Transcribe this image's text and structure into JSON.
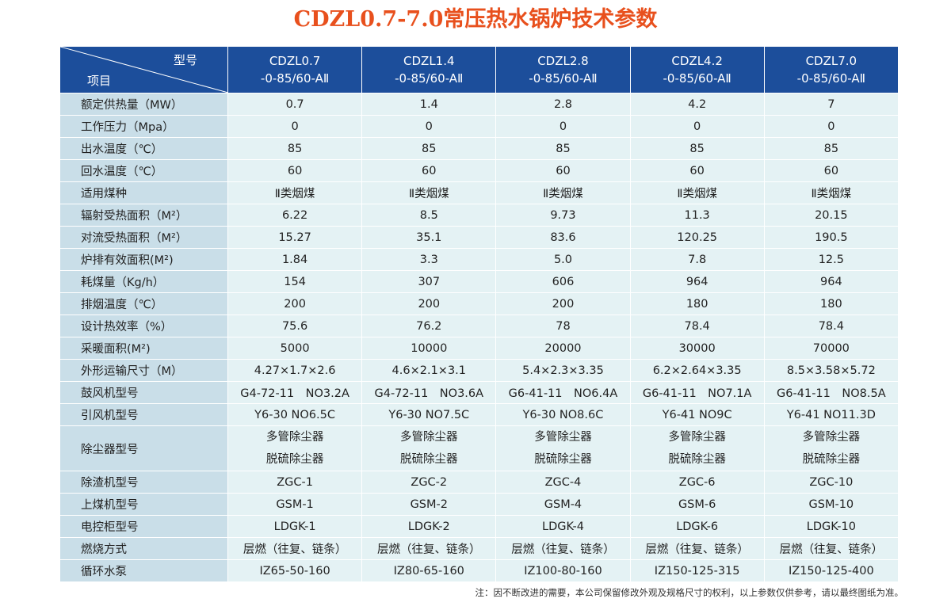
{
  "title": "CDZL0.7-7.0常压热水锅炉技术参数",
  "header": {
    "corner_top": "型号",
    "corner_bottom": "项目",
    "models": [
      {
        "line1": "CDZL0.7",
        "line2": "-0-85/60-AⅡ"
      },
      {
        "line1": "CDZL1.4",
        "line2": "-0-85/60-AⅡ"
      },
      {
        "line1": "CDZL2.8",
        "line2": "-0-85/60-AⅡ"
      },
      {
        "line1": "CDZL4.2",
        "line2": "-0-85/60-AⅡ"
      },
      {
        "line1": "CDZL7.0",
        "line2": "-0-85/60-AⅡ"
      }
    ]
  },
  "rows": [
    {
      "label": "额定供热量（MW）",
      "values": [
        "0.7",
        "1.4",
        "2.8",
        "4.2",
        "7"
      ]
    },
    {
      "label": "工作压力（Mpa）",
      "values": [
        "0",
        "0",
        "0",
        "0",
        "0"
      ]
    },
    {
      "label": "出水温度（℃）",
      "values": [
        "85",
        "85",
        "85",
        "85",
        "85"
      ]
    },
    {
      "label": "回水温度（℃）",
      "values": [
        "60",
        "60",
        "60",
        "60",
        "60"
      ]
    },
    {
      "label": "适用煤种",
      "values": [
        "Ⅱ类烟煤",
        "Ⅱ类烟煤",
        "Ⅱ类烟煤",
        "Ⅱ类烟煤",
        "Ⅱ类烟煤"
      ]
    },
    {
      "label": "辐射受热面积（M²）",
      "values": [
        "6.22",
        "8.5",
        "9.73",
        "11.3",
        "20.15"
      ]
    },
    {
      "label": "对流受热面积（M²）",
      "values": [
        "15.27",
        "35.1",
        "83.6",
        "120.25",
        "190.5"
      ]
    },
    {
      "label": "炉排有效面积(M²)",
      "values": [
        "1.84",
        "3.3",
        "5.0",
        "7.8",
        "12.5"
      ]
    },
    {
      "label": "耗煤量（Kg/h）",
      "values": [
        "154",
        "307",
        "606",
        "964",
        "964"
      ]
    },
    {
      "label": "排烟温度（℃）",
      "values": [
        "200",
        "200",
        "200",
        "180",
        "180"
      ]
    },
    {
      "label": "设计热效率（%）",
      "values": [
        "75.6",
        "76.2",
        "78",
        "78.4",
        "78.4"
      ]
    },
    {
      "label": "采暖面积(M²)",
      "values": [
        "5000",
        "10000",
        "20000",
        "30000",
        "70000"
      ]
    },
    {
      "label": "外形运输尺寸（M）",
      "values": [
        "4.27×1.7×2.6",
        "4.6×2.1×3.1",
        "5.4×2.3×3.35",
        "6.2×2.64×3.35",
        "8.5×3.58×5.72"
      ]
    },
    {
      "label": "鼓风机型号",
      "values": [
        "G4-72-11　NO3.2A",
        "G4-72-11　NO3.6A",
        "G6-41-11　NO6.4A",
        "G6-41-11　NO7.1A",
        "G6-41-11　NO8.5A"
      ]
    },
    {
      "label": "引风机型号",
      "values": [
        "Y6-30 NO6.5C",
        "Y6-30 NO7.5C",
        "Y6-30 NO8.6C",
        "Y6-41 NO9C",
        "Y6-41 NO11.3D"
      ]
    }
  ],
  "dust_row": {
    "label": "除尘器型号",
    "line1": [
      "多管除尘器",
      "多管除尘器",
      "多管除尘器",
      "多管除尘器",
      "多管除尘器"
    ],
    "line2": [
      "脱硫除尘器",
      "脱硫除尘器",
      "脱硫除尘器",
      "脱硫除尘器",
      "脱硫除尘器"
    ]
  },
  "rows2": [
    {
      "label": "除渣机型号",
      "values": [
        "ZGC-1",
        "ZGC-2",
        "ZGC-4",
        "ZGC-6",
        "ZGC-10"
      ]
    },
    {
      "label": "上煤机型号",
      "values": [
        "GSM-1",
        "GSM-2",
        "GSM-4",
        "GSM-6",
        "GSM-10"
      ]
    },
    {
      "label": "电控柜型号",
      "values": [
        "LDGK-1",
        "LDGK-2",
        "LDGK-4",
        "LDGK-6",
        "LDGK-10"
      ]
    },
    {
      "label": "燃烧方式",
      "values": [
        "层燃（往复、链条）",
        "层燃（往复、链条）",
        "层燃（往复、链条）",
        "层燃（往复、链条）",
        "层燃（往复、链条）"
      ]
    },
    {
      "label": "循环水泵",
      "values": [
        "IZ65-50-160",
        "IZ80-65-160",
        "IZ100-80-160",
        "IZ150-125-315",
        "IZ150-125-400"
      ]
    }
  ],
  "note": "注：因不断改进的需要，本公司保留修改外观及规格尺寸的权利，以上参数仅供参考，请以最终图纸为准。"
}
